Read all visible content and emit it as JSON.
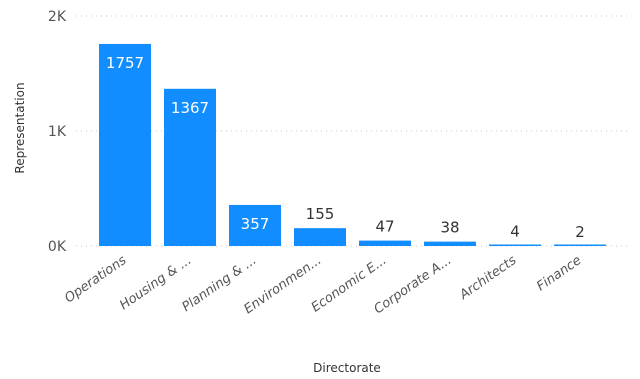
{
  "chart_data": {
    "type": "bar",
    "xlabel": "Directorate",
    "ylabel": "Representation",
    "ylim": [
      0,
      2000
    ],
    "y_ticks": [
      {
        "value": 0,
        "label": "0K"
      },
      {
        "value": 1000,
        "label": "1K"
      },
      {
        "value": 2000,
        "label": "2K"
      }
    ],
    "grid": true,
    "categories": [
      "Operations",
      "Housing & ...",
      "Planning & ...",
      "Environmen...",
      "Economic E...",
      "Corporate A...",
      "Architects",
      "Finance"
    ],
    "values": [
      1757,
      1367,
      357,
      155,
      47,
      38,
      4,
      2
    ],
    "bar_color": "#118DFF",
    "label_inside_color": "#ffffff",
    "label_outside_color": "#333333"
  }
}
